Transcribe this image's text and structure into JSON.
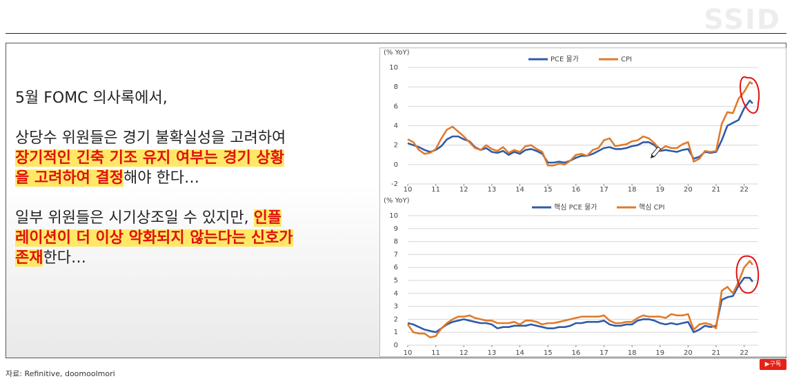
{
  "watermark": "SSID",
  "text": {
    "line1": "5월 FOMC 의사록에서,",
    "p2_plain1": "상당수 위원들은 경기 불확실성을 고려하여",
    "p2_hl1": "장기적인 긴축 기조 유지 여부는 경기 상황",
    "p2_hl2": "을 고려하여 결정",
    "p2_plain2": "해야 한다…",
    "p3_plain1": "일부 위원들은 시기상조일 수 있지만, ",
    "p3_hl1": "인플",
    "p3_hl2": "레이션이 더 이상 악화되지 않는다는 신호가",
    "p3_hl3": "존재",
    "p3_plain2": "한다…"
  },
  "footer": {
    "source": "자료: Refinitive, doomoolmori"
  },
  "subscribe": {
    "label": "▶구독"
  },
  "colors": {
    "pce": "#2e5aa8",
    "cpi": "#e07a2a",
    "annotation": "#e01010",
    "highlight": "#ffe866",
    "emphasis": "#e01010"
  },
  "chart_data": [
    {
      "type": "line",
      "ylabel": "(% YoY)",
      "ylim": [
        -2,
        10
      ],
      "yticks": [
        "-2",
        "0",
        "2",
        "4",
        "6",
        "8",
        "10"
      ],
      "xticks": [
        "10",
        "11",
        "12",
        "13",
        "14",
        "15",
        "16",
        "17",
        "18",
        "19",
        "20",
        "21",
        "22"
      ],
      "grid": true,
      "legend_position": "top-center",
      "series": [
        {
          "name": "PCE 물가",
          "color": "#2e5aa8",
          "x": [
            10.0,
            10.2,
            10.4,
            10.6,
            10.8,
            11.0,
            11.2,
            11.4,
            11.6,
            11.8,
            12.0,
            12.2,
            12.4,
            12.6,
            12.8,
            13.0,
            13.2,
            13.4,
            13.6,
            13.8,
            14.0,
            14.2,
            14.4,
            14.6,
            14.8,
            15.0,
            15.2,
            15.4,
            15.6,
            15.8,
            16.0,
            16.2,
            16.4,
            16.6,
            16.8,
            17.0,
            17.2,
            17.4,
            17.6,
            17.8,
            18.0,
            18.2,
            18.4,
            18.6,
            18.8,
            19.0,
            19.2,
            19.4,
            19.6,
            19.8,
            20.0,
            20.2,
            20.4,
            20.6,
            20.8,
            21.0,
            21.2,
            21.4,
            21.6,
            21.8,
            22.0,
            22.2,
            22.3
          ],
          "y": [
            2.2,
            2.0,
            1.8,
            1.5,
            1.3,
            1.5,
            1.9,
            2.6,
            2.9,
            2.9,
            2.6,
            2.4,
            1.8,
            1.5,
            1.7,
            1.3,
            1.2,
            1.4,
            1.0,
            1.3,
            1.1,
            1.5,
            1.6,
            1.4,
            1.1,
            0.2,
            0.2,
            0.3,
            0.2,
            0.4,
            0.7,
            0.9,
            0.9,
            1.1,
            1.4,
            1.7,
            1.8,
            1.6,
            1.6,
            1.7,
            1.9,
            2.0,
            2.3,
            2.3,
            2.0,
            1.4,
            1.5,
            1.4,
            1.3,
            1.5,
            1.6,
            0.6,
            0.8,
            1.3,
            1.2,
            1.3,
            2.5,
            4.0,
            4.3,
            4.6,
            5.8,
            6.6,
            6.3
          ]
        },
        {
          "name": "CPI",
          "color": "#e07a2a",
          "x": [
            10.0,
            10.2,
            10.4,
            10.6,
            10.8,
            11.0,
            11.2,
            11.4,
            11.6,
            11.8,
            12.0,
            12.2,
            12.4,
            12.6,
            12.8,
            13.0,
            13.2,
            13.4,
            13.6,
            13.8,
            14.0,
            14.2,
            14.4,
            14.6,
            14.8,
            15.0,
            15.2,
            15.4,
            15.6,
            15.8,
            16.0,
            16.2,
            16.4,
            16.6,
            16.8,
            17.0,
            17.2,
            17.4,
            17.6,
            17.8,
            18.0,
            18.2,
            18.4,
            18.6,
            18.8,
            19.0,
            19.2,
            19.4,
            19.6,
            19.8,
            20.0,
            20.2,
            20.4,
            20.6,
            20.8,
            21.0,
            21.2,
            21.4,
            21.6,
            21.8,
            22.0,
            22.2,
            22.3
          ],
          "y": [
            2.6,
            2.3,
            1.5,
            1.1,
            1.2,
            1.6,
            2.7,
            3.6,
            3.9,
            3.4,
            2.9,
            2.3,
            1.7,
            1.5,
            2.0,
            1.6,
            1.4,
            1.8,
            1.2,
            1.5,
            1.3,
            1.9,
            2.0,
            1.6,
            1.3,
            -0.1,
            -0.1,
            0.1,
            0.0,
            0.4,
            1.0,
            1.1,
            0.9,
            1.5,
            1.7,
            2.5,
            2.7,
            1.9,
            2.0,
            2.1,
            2.4,
            2.5,
            2.9,
            2.7,
            2.2,
            1.5,
            1.9,
            1.7,
            1.7,
            2.1,
            2.3,
            0.3,
            0.6,
            1.4,
            1.3,
            1.4,
            4.2,
            5.4,
            5.3,
            6.8,
            7.5,
            8.5,
            8.3
          ]
        }
      ]
    },
    {
      "type": "line",
      "ylabel": "(% YoY)",
      "ylim": [
        0,
        10
      ],
      "yticks": [
        "0",
        "1",
        "2",
        "3",
        "4",
        "5",
        "6",
        "7",
        "8",
        "9",
        "10"
      ],
      "xticks": [
        "10",
        "11",
        "12",
        "13",
        "14",
        "15",
        "16",
        "17",
        "18",
        "19",
        "20",
        "21",
        "22"
      ],
      "grid": true,
      "legend_position": "top-center",
      "series": [
        {
          "name": "핵심 PCE 물가",
          "color": "#2e5aa8",
          "x": [
            10.0,
            10.2,
            10.4,
            10.6,
            10.8,
            11.0,
            11.2,
            11.4,
            11.6,
            11.8,
            12.0,
            12.2,
            12.4,
            12.6,
            12.8,
            13.0,
            13.2,
            13.4,
            13.6,
            13.8,
            14.0,
            14.2,
            14.4,
            14.6,
            14.8,
            15.0,
            15.2,
            15.4,
            15.6,
            15.8,
            16.0,
            16.2,
            16.4,
            16.6,
            16.8,
            17.0,
            17.2,
            17.4,
            17.6,
            17.8,
            18.0,
            18.2,
            18.4,
            18.6,
            18.8,
            19.0,
            19.2,
            19.4,
            19.6,
            19.8,
            20.0,
            20.2,
            20.4,
            20.6,
            20.8,
            21.0,
            21.2,
            21.4,
            21.6,
            21.8,
            22.0,
            22.2,
            22.3
          ],
          "y": [
            1.7,
            1.6,
            1.4,
            1.2,
            1.1,
            1.0,
            1.3,
            1.6,
            1.8,
            1.9,
            2.0,
            1.9,
            1.8,
            1.7,
            1.7,
            1.6,
            1.3,
            1.4,
            1.4,
            1.5,
            1.5,
            1.5,
            1.6,
            1.5,
            1.4,
            1.3,
            1.3,
            1.4,
            1.4,
            1.5,
            1.7,
            1.7,
            1.8,
            1.8,
            1.8,
            1.9,
            1.6,
            1.5,
            1.5,
            1.6,
            1.6,
            1.9,
            2.0,
            2.0,
            1.9,
            1.7,
            1.6,
            1.7,
            1.6,
            1.7,
            1.8,
            1.0,
            1.2,
            1.5,
            1.4,
            1.5,
            3.5,
            3.7,
            3.8,
            4.6,
            5.2,
            5.2,
            4.9
          ]
        },
        {
          "name": "핵심 CPI",
          "color": "#e07a2a",
          "x": [
            10.0,
            10.2,
            10.4,
            10.6,
            10.8,
            11.0,
            11.2,
            11.4,
            11.6,
            11.8,
            12.0,
            12.2,
            12.4,
            12.6,
            12.8,
            13.0,
            13.2,
            13.4,
            13.6,
            13.8,
            14.0,
            14.2,
            14.4,
            14.6,
            14.8,
            15.0,
            15.2,
            15.4,
            15.6,
            15.8,
            16.0,
            16.2,
            16.4,
            16.6,
            16.8,
            17.0,
            17.2,
            17.4,
            17.6,
            17.8,
            18.0,
            18.2,
            18.4,
            18.6,
            18.8,
            19.0,
            19.2,
            19.4,
            19.6,
            19.8,
            20.0,
            20.2,
            20.4,
            20.6,
            20.8,
            21.0,
            21.2,
            21.4,
            21.6,
            21.8,
            22.0,
            22.2,
            22.3
          ],
          "y": [
            1.6,
            1.0,
            0.9,
            0.9,
            0.6,
            0.7,
            1.3,
            1.7,
            2.0,
            2.2,
            2.2,
            2.3,
            2.1,
            2.0,
            1.9,
            1.9,
            1.7,
            1.7,
            1.7,
            1.8,
            1.6,
            1.9,
            1.9,
            1.8,
            1.6,
            1.7,
            1.7,
            1.8,
            1.9,
            2.0,
            2.1,
            2.2,
            2.2,
            2.2,
            2.2,
            2.3,
            1.9,
            1.7,
            1.7,
            1.8,
            1.8,
            2.1,
            2.3,
            2.2,
            2.2,
            2.2,
            2.1,
            2.4,
            2.3,
            2.3,
            2.4,
            1.2,
            1.6,
            1.7,
            1.6,
            1.3,
            4.2,
            4.5,
            4.0,
            4.9,
            6.0,
            6.5,
            6.2
          ]
        }
      ]
    }
  ]
}
